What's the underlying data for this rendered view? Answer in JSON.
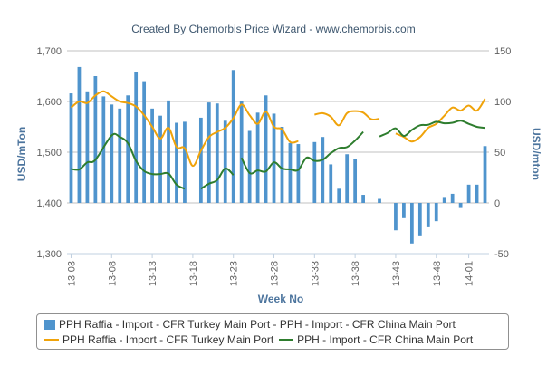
{
  "header": {
    "title": "Created By Chemorbis Price Wizard - www.chemorbis.com"
  },
  "chart_data": {
    "type": "bar+line",
    "title": "Created By Chemorbis Price Wizard - www.chemorbis.com",
    "xlabel": "Week No",
    "ylabel_left": "USD/mTon",
    "ylabel_right": "USD/mton",
    "ylim_left": [
      1300,
      1700
    ],
    "ylim_right": [
      -50,
      150
    ],
    "yticks_left": [
      "1,300",
      "1,400",
      "1,500",
      "1,600",
      "1,700"
    ],
    "yticks_right": [
      "-50",
      "0",
      "50",
      "100",
      "150"
    ],
    "x_range": [
      3,
      54
    ],
    "xticks": [
      {
        "x": 3,
        "label": "13-03"
      },
      {
        "x": 8,
        "label": "13-08"
      },
      {
        "x": 13,
        "label": "13-13"
      },
      {
        "x": 18,
        "label": "13-18"
      },
      {
        "x": 23,
        "label": "13-23"
      },
      {
        "x": 28,
        "label": "13-28"
      },
      {
        "x": 33,
        "label": "13-33"
      },
      {
        "x": 38,
        "label": "13-38"
      },
      {
        "x": 43,
        "label": "13-43"
      },
      {
        "x": 48,
        "label": "13-48"
      },
      {
        "x": 52,
        "label": "14-01"
      }
    ],
    "grid": "horizontal",
    "legend_position": "bottom",
    "series": [
      {
        "name": "PPH Raffia - Import - CFR Turkey Main Port - PPH - Import - CFR China Main Port",
        "type": "bar",
        "axis": "right",
        "color": "#4f94cd",
        "values": [
          [
            3,
            108
          ],
          [
            4,
            134
          ],
          [
            5,
            110
          ],
          [
            6,
            125
          ],
          [
            7,
            105
          ],
          [
            8,
            97
          ],
          [
            9,
            93
          ],
          [
            10,
            106
          ],
          [
            11,
            129
          ],
          [
            12,
            120
          ],
          [
            13,
            93
          ],
          [
            14,
            86
          ],
          [
            15,
            101
          ],
          [
            16,
            79
          ],
          [
            17,
            80
          ],
          [
            19,
            84
          ],
          [
            20,
            99
          ],
          [
            21,
            98
          ],
          [
            22,
            81
          ],
          [
            23,
            131
          ],
          [
            24,
            100
          ],
          [
            25,
            71
          ],
          [
            26,
            89
          ],
          [
            27,
            106
          ],
          [
            28,
            88
          ],
          [
            29,
            75
          ],
          [
            30,
            59
          ],
          [
            31,
            58
          ],
          [
            33,
            60
          ],
          [
            34,
            65
          ],
          [
            35,
            38
          ],
          [
            36,
            14
          ],
          [
            37,
            48
          ],
          [
            38,
            43
          ],
          [
            39,
            8
          ],
          [
            41,
            4
          ],
          [
            43,
            -27
          ],
          [
            44,
            -15
          ],
          [
            45,
            -40
          ],
          [
            46,
            -32
          ],
          [
            47,
            -24
          ],
          [
            48,
            -18
          ],
          [
            49,
            5
          ],
          [
            50,
            9
          ],
          [
            51,
            -5
          ],
          [
            52,
            18
          ],
          [
            53,
            18
          ],
          [
            54,
            56
          ]
        ]
      },
      {
        "name": "PPH Raffia - Import - CFR Turkey Main Port",
        "type": "line",
        "axis": "left",
        "color": "#f0a30a",
        "segments": [
          [
            [
              3,
              1588
            ],
            [
              4,
              1600
            ],
            [
              5,
              1597
            ],
            [
              6,
              1612
            ],
            [
              7,
              1620
            ],
            [
              8,
              1610
            ],
            [
              9,
              1600
            ],
            [
              10,
              1597
            ],
            [
              11,
              1590
            ],
            [
              12,
              1573
            ],
            [
              13,
              1550
            ],
            [
              14,
              1527
            ],
            [
              15,
              1548
            ],
            [
              16,
              1510
            ],
            [
              17,
              1508
            ],
            [
              18,
              1473
            ],
            [
              19,
              1503
            ],
            [
              20,
              1530
            ],
            [
              21,
              1540
            ],
            [
              22,
              1548
            ],
            [
              23,
              1567
            ],
            [
              24,
              1594
            ],
            [
              25,
              1573
            ],
            [
              26,
              1556
            ],
            [
              27,
              1580
            ],
            [
              28,
              1550
            ],
            [
              29,
              1545
            ],
            [
              30,
              1520
            ],
            [
              31,
              1522
            ]
          ],
          [
            [
              33,
              1574
            ],
            [
              34,
              1577
            ],
            [
              35,
              1570
            ],
            [
              36,
              1553
            ],
            [
              37,
              1577
            ],
            [
              38,
              1581
            ],
            [
              39,
              1578
            ],
            [
              40,
              1565
            ],
            [
              41,
              1566
            ]
          ],
          [
            [
              43,
              1537
            ],
            [
              44,
              1530
            ],
            [
              45,
              1521
            ],
            [
              46,
              1530
            ],
            [
              47,
              1548
            ],
            [
              48,
              1556
            ],
            [
              49,
              1572
            ],
            [
              50,
              1588
            ],
            [
              51,
              1582
            ],
            [
              52,
              1592
            ],
            [
              53,
              1582
            ],
            [
              54,
              1605
            ]
          ]
        ]
      },
      {
        "name": "PPH - Import - CFR China Main Port",
        "type": "line",
        "axis": "left",
        "color": "#2e7d2e",
        "segments": [
          [
            [
              3,
              1467
            ],
            [
              4,
              1466
            ],
            [
              5,
              1480
            ],
            [
              6,
              1485
            ],
            [
              8,
              1533
            ],
            [
              9,
              1530
            ],
            [
              10,
              1518
            ],
            [
              11,
              1483
            ],
            [
              12,
              1463
            ],
            [
              13,
              1457
            ],
            [
              14,
              1457
            ],
            [
              15,
              1458
            ],
            [
              16,
              1436
            ],
            [
              17,
              1428
            ]
          ],
          [
            [
              19,
              1428
            ],
            [
              20,
              1438
            ],
            [
              21,
              1445
            ],
            [
              22,
              1468
            ],
            [
              23,
              1455
            ]
          ],
          [
            [
              24,
              1489
            ],
            [
              25,
              1459
            ],
            [
              26,
              1464
            ],
            [
              27,
              1462
            ],
            [
              28,
              1480
            ],
            [
              29,
              1468
            ],
            [
              30,
              1466
            ],
            [
              31,
              1465
            ],
            [
              32,
              1489
            ],
            [
              33,
              1483
            ],
            [
              34,
              1485
            ],
            [
              35,
              1498
            ],
            [
              36,
              1508
            ],
            [
              37,
              1510
            ],
            [
              38,
              1523
            ],
            [
              39,
              1540
            ]
          ],
          [
            [
              41,
              1531
            ],
            [
              42,
              1538
            ],
            [
              43,
              1547
            ],
            [
              44,
              1532
            ],
            [
              45,
              1544
            ],
            [
              46,
              1553
            ],
            [
              47,
              1554
            ],
            [
              48,
              1560
            ],
            [
              49,
              1557
            ],
            [
              50,
              1558
            ],
            [
              51,
              1562
            ],
            [
              52,
              1556
            ],
            [
              53,
              1550
            ],
            [
              54,
              1548
            ]
          ]
        ]
      }
    ]
  }
}
